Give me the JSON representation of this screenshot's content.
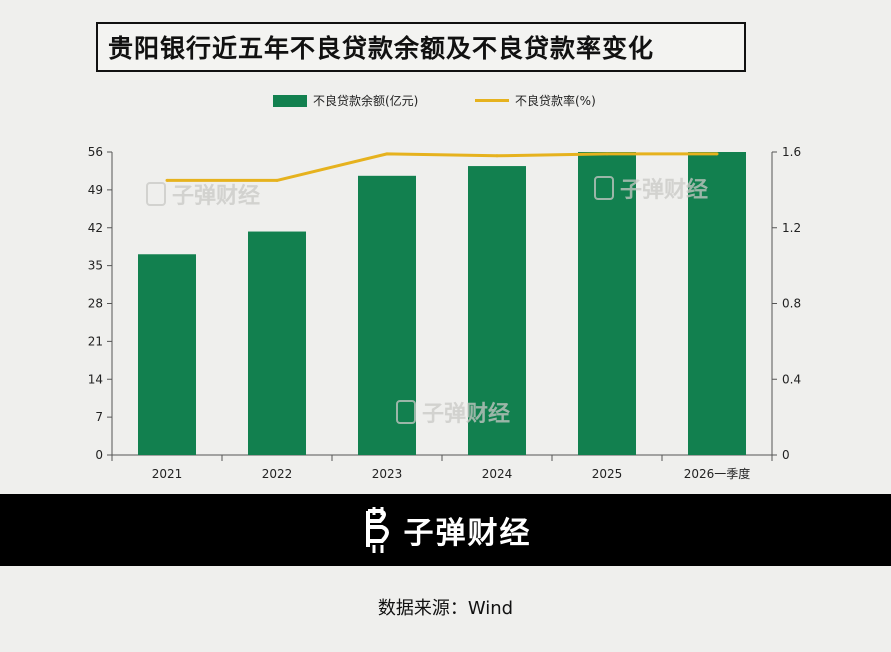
{
  "title": "贵阳银行近五年不良贷款余额及不良贷款率变化",
  "watermark": "子弹财经",
  "footer": {
    "brand": "子弹财经",
    "source": "数据来源：Wind"
  },
  "colors": {
    "bar": "#12804f",
    "line": "#e6b21e",
    "footer_bg": "#000000"
  },
  "chart_data": {
    "type": "bar",
    "categories": [
      "2021",
      "2022",
      "2023",
      "2024",
      "2025",
      "2026一季度"
    ],
    "series": [
      {
        "name": "不良贷款余额(亿元)",
        "type": "bar",
        "axis": "left",
        "values": [
          37.1,
          41.3,
          51.6,
          53.4,
          56.0,
          56.0
        ]
      },
      {
        "name": "不良贷款率(%)",
        "type": "line",
        "axis": "right",
        "values": [
          1.45,
          1.45,
          1.59,
          1.58,
          1.59,
          1.59
        ]
      }
    ],
    "y_left": {
      "min": 0,
      "max": 56,
      "ticks": [
        "0",
        "7",
        "14",
        "21",
        "28",
        "35",
        "42",
        "49",
        "56"
      ]
    },
    "y_right": {
      "min": 0,
      "max": 1.6,
      "ticks": [
        "0",
        "0.4",
        "0.8",
        "1.2",
        "1.6"
      ]
    },
    "legend_position": "top-center",
    "grid": false
  }
}
